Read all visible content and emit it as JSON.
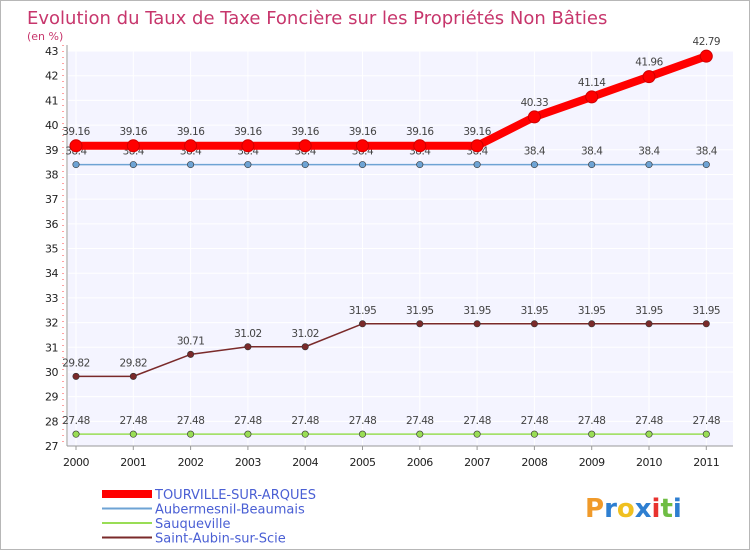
{
  "chart_data": {
    "type": "line",
    "title": "Evolution du Taux de Taxe Foncière sur les Propriétés Non Bâties",
    "subtitle": "(en %)",
    "xlabel": "",
    "ylabel": "",
    "categories": [
      "2000",
      "2001",
      "2002",
      "2003",
      "2004",
      "2005",
      "2006",
      "2007",
      "2008",
      "2009",
      "2010",
      "2011"
    ],
    "ylim": [
      27,
      43
    ],
    "yticks": [
      27,
      28,
      29,
      30,
      31,
      32,
      33,
      34,
      35,
      36,
      37,
      38,
      39,
      40,
      41,
      42,
      43
    ],
    "grid": true,
    "legend": "bottom-left",
    "series": [
      {
        "name": "TOURVILLE-SUR-ARQUES",
        "color": "#ff0000",
        "values": [
          39.16,
          39.16,
          39.16,
          39.16,
          39.16,
          39.16,
          39.16,
          39.16,
          40.33,
          41.14,
          41.96,
          42.79
        ],
        "labels": [
          "39.16",
          "39.16",
          "39.16",
          "39.16",
          "39.16",
          "39.16",
          "39.16",
          "39.16",
          "40.33",
          "41.14",
          "41.96",
          "42.79"
        ]
      },
      {
        "name": "Aubermesnil-Beaumais",
        "color": "#6ea3d4",
        "values": [
          38.4,
          38.4,
          38.4,
          38.4,
          38.4,
          38.4,
          38.4,
          38.4,
          38.4,
          38.4,
          38.4,
          38.4
        ],
        "labels": [
          "38.4",
          "38.4",
          "38.4",
          "38.4",
          "38.4",
          "38.4",
          "38.4",
          "38.4",
          "38.4",
          "38.4",
          "38.4",
          "38.4"
        ]
      },
      {
        "name": "Sauqueville",
        "color": "#99dd55",
        "values": [
          27.48,
          27.48,
          27.48,
          27.48,
          27.48,
          27.48,
          27.48,
          27.48,
          27.48,
          27.48,
          27.48,
          27.48
        ],
        "labels": [
          "27.48",
          "27.48",
          "27.48",
          "27.48",
          "27.48",
          "27.48",
          "27.48",
          "27.48",
          "27.48",
          "27.48",
          "27.48",
          "27.48"
        ]
      },
      {
        "name": "Saint-Aubin-sur-Scie",
        "color": "#7a2a2a",
        "values": [
          29.82,
          29.82,
          30.71,
          31.02,
          31.02,
          31.95,
          31.95,
          31.95,
          31.95,
          31.95,
          31.95,
          31.95
        ],
        "labels": [
          "29.82",
          "29.82",
          "30.71",
          "31.02",
          "31.02",
          "31.95",
          "31.95",
          "31.95",
          "31.95",
          "31.95",
          "31.95",
          "31.95"
        ]
      }
    ]
  },
  "branding": {
    "logo_text": "Proxiti",
    "logo_letters": [
      "P",
      "r",
      "o",
      "x",
      "i",
      "t",
      "i"
    ],
    "logo_colors": [
      "#f09a2a",
      "#2e7fd1",
      "#f0c020",
      "#2e7fd1",
      "#e8322e",
      "#6fbd44",
      "#2e7fd1"
    ]
  }
}
